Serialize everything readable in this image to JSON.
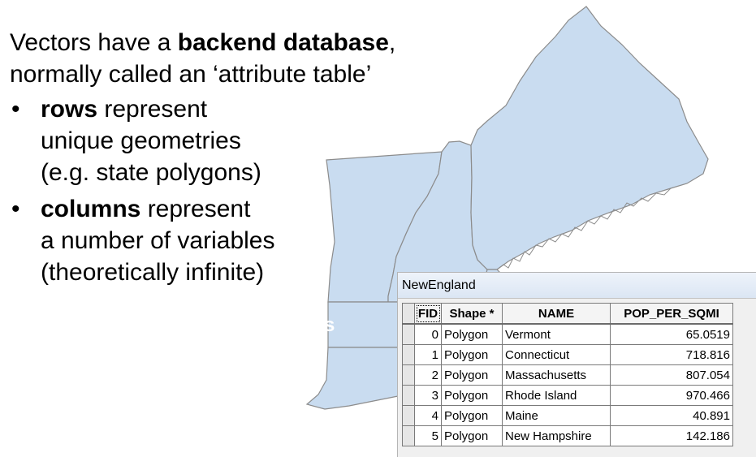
{
  "slide": {
    "intro": {
      "line1_prefix": "Vectors have a ",
      "line1_bold": "backend database",
      "line1_suffix": ",",
      "line2": "normally called an ‘attribute table’"
    },
    "bullets": [
      {
        "marker": "•",
        "bold": "rows",
        "line1_rest": " represent",
        "line2": "unique geometries",
        "line3": "(e.g. state polygons)"
      },
      {
        "marker": "•",
        "bold": "columns",
        "line1_rest": " represent",
        "line2": "a number of variables",
        "line3": "(theoretically infinite)"
      }
    ]
  },
  "map": {
    "fill_color": "#c9dcf0",
    "stroke_color": "#8c8c8c",
    "stray_label": "s"
  },
  "attribute_table": {
    "window_title": "NewEngland",
    "columns": [
      "FID",
      "Shape *",
      "NAME",
      "POP_PER_SQMI"
    ],
    "rows": [
      {
        "fid": "0",
        "shape": "Polygon",
        "name": "Vermont",
        "pop": "65.0519"
      },
      {
        "fid": "1",
        "shape": "Polygon",
        "name": "Connecticut",
        "pop": "718.816"
      },
      {
        "fid": "2",
        "shape": "Polygon",
        "name": "Massachusetts",
        "pop": "807.054"
      },
      {
        "fid": "3",
        "shape": "Polygon",
        "name": "Rhode Island",
        "pop": "970.466"
      },
      {
        "fid": "4",
        "shape": "Polygon",
        "name": "Maine",
        "pop": "40.891"
      },
      {
        "fid": "5",
        "shape": "Polygon",
        "name": "New Hampshire",
        "pop": "142.186"
      }
    ]
  }
}
